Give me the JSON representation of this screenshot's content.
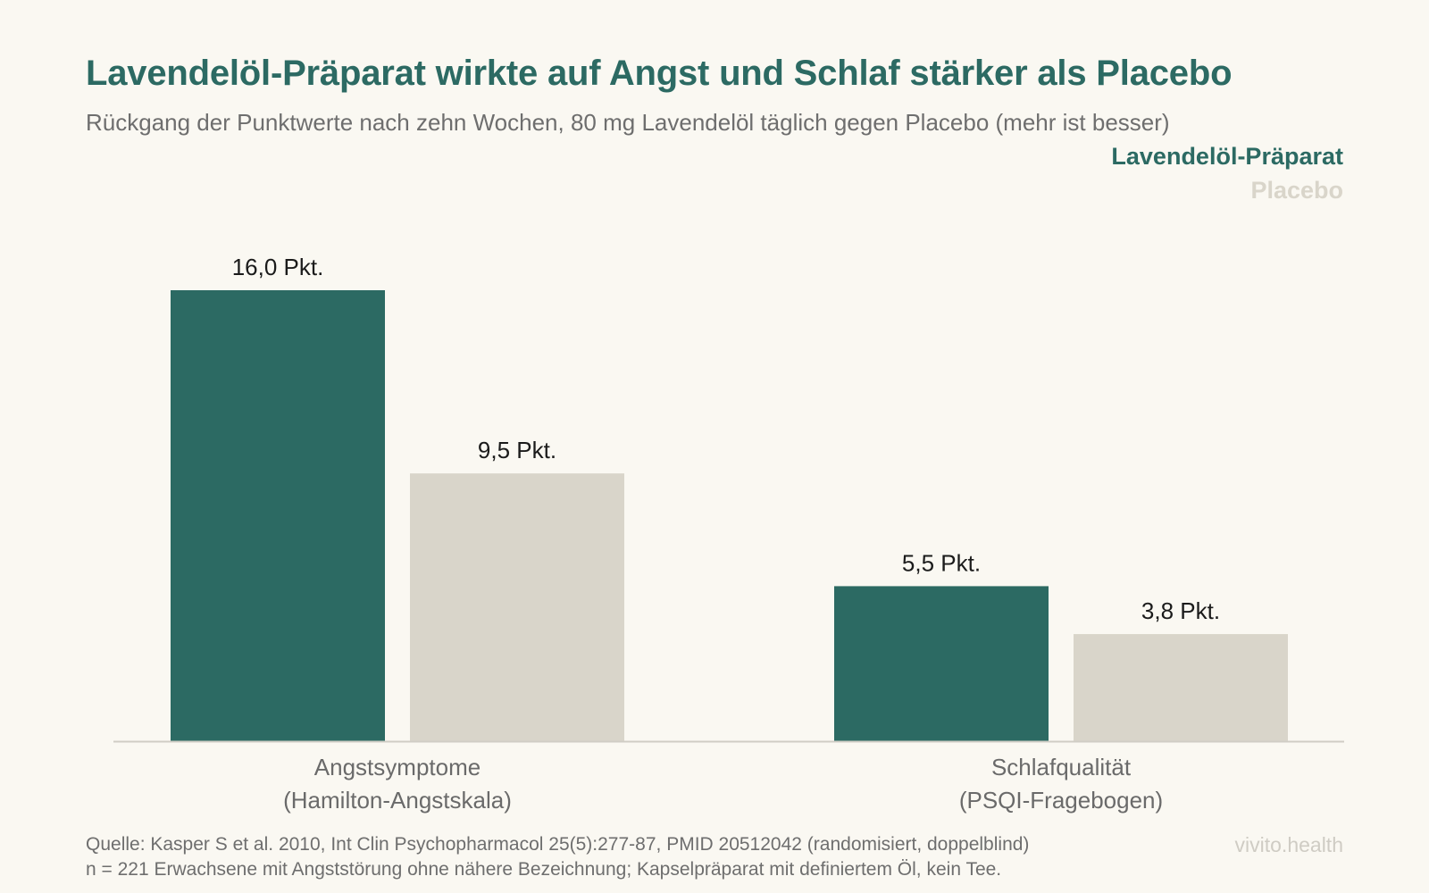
{
  "title": "Lavendelöl-Präparat wirkte auf Angst und Schlaf stärker als Placebo",
  "subtitle": "Rückgang der Punktwerte nach zehn Wochen, 80 mg Lavendelöl täglich gegen Placebo (mehr ist besser)",
  "legend": {
    "position": "top-right",
    "items": [
      {
        "label": "Lavendelöl-Präparat",
        "color": "#2c6a63"
      },
      {
        "label": "Placebo",
        "color": "#d9d5ca"
      }
    ]
  },
  "chart_data": {
    "type": "bar",
    "categories": [
      [
        "Angstsymptome",
        "(Hamilton-Angstskala)"
      ],
      [
        "Schlafqualität",
        "(PSQI-Fragebogen)"
      ]
    ],
    "series": [
      {
        "name": "Lavendelöl-Präparat",
        "color": "#2c6a63",
        "values": [
          16.0,
          5.5
        ],
        "labels": [
          "16,0 Pkt.",
          "5,5 Pkt."
        ]
      },
      {
        "name": "Placebo",
        "color": "#d9d5ca",
        "values": [
          9.5,
          3.8
        ],
        "labels": [
          "9,5 Pkt.",
          "3,8 Pkt."
        ]
      }
    ],
    "ylim": [
      0,
      16
    ],
    "grid": false,
    "baseline_color": "#d0cdc5",
    "label_color": "#1b1b1b",
    "category_label_color": "#6a6a6a"
  },
  "footer": {
    "source": "Quelle: Kasper S et al. 2010, Int Clin Psychopharmacol 25(5):277-87, PMID 20512042 (randomisiert, doppelblind)",
    "note": "n = 221 Erwachsene mit Angststörung ohne nähere Bezeichnung; Kapselpräparat mit definiertem Öl, kein Tee.",
    "brand": "vivito.health"
  }
}
